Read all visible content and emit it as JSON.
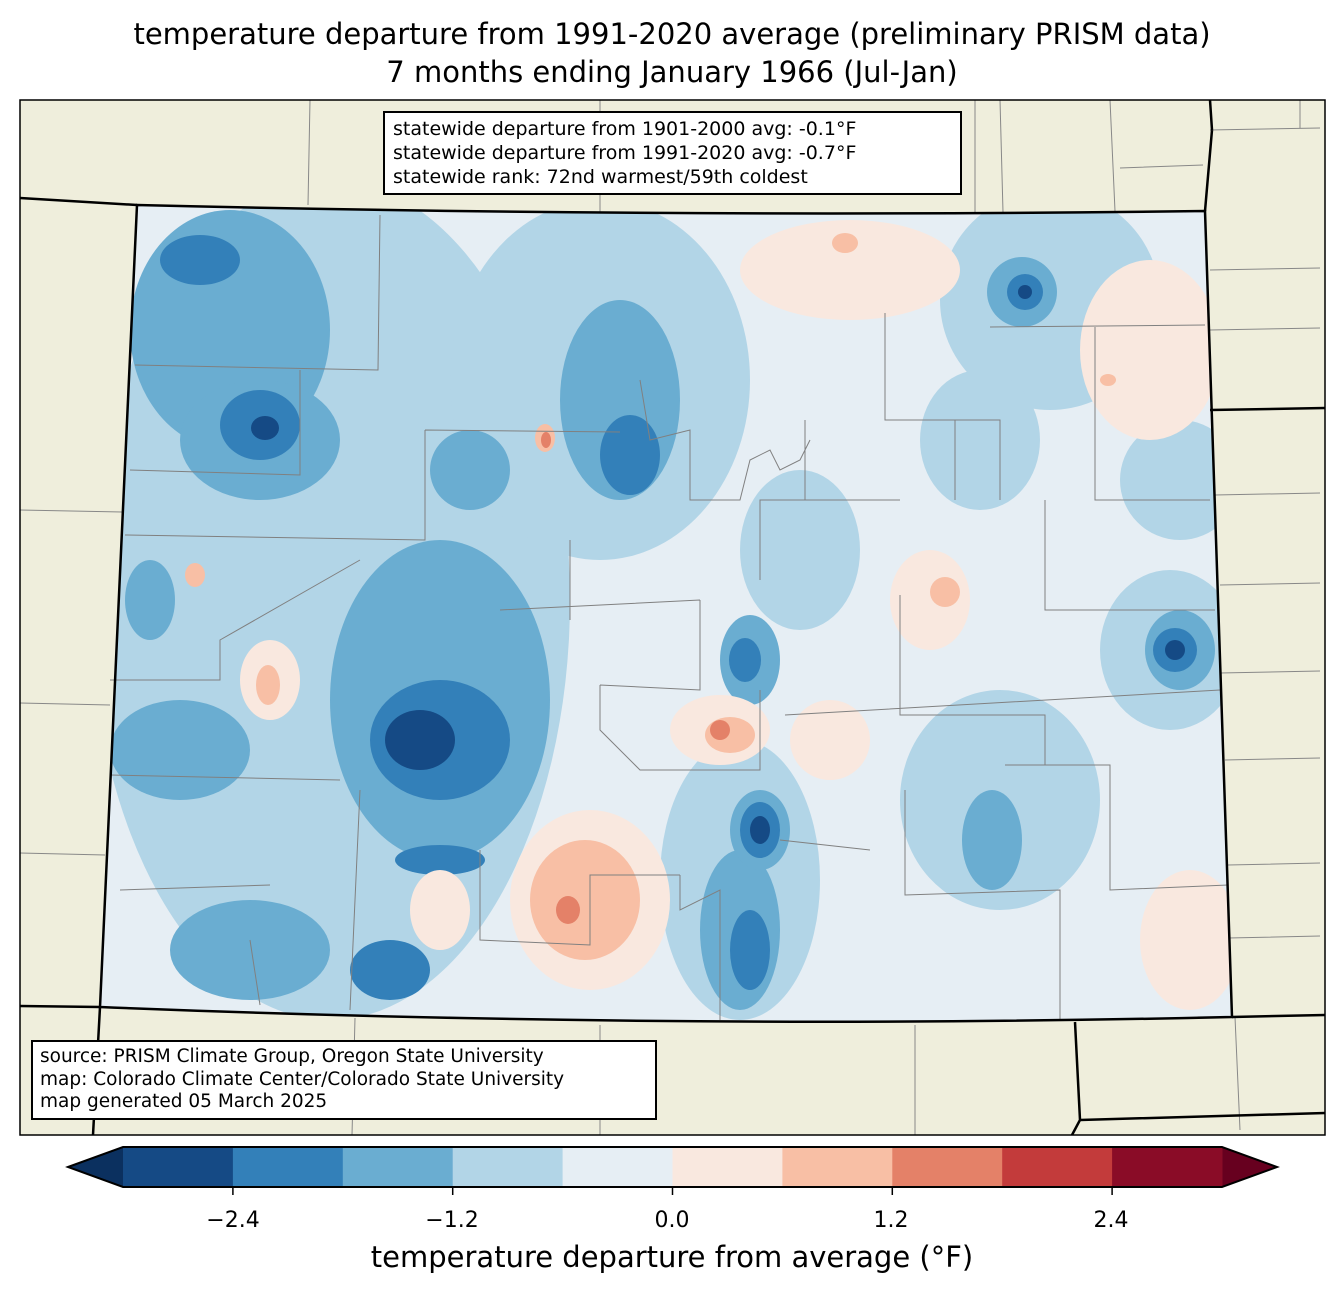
{
  "title": {
    "line1": "temperature departure from 1991-2020 average (preliminary PRISM data)",
    "line2": "7 months ending January 1966 (Jul-Jan)"
  },
  "stats": [
    "statewide departure from 1901-2000 avg: -0.1°F",
    "statewide departure from 1991-2020 avg: -0.7°F",
    "statewide rank: 72nd warmest/59th coldest"
  ],
  "source": [
    "source: PRISM Climate Group, Oregon State University",
    "map: Colorado Climate Center/Colorado State University",
    "map generated 05 March 2025"
  ],
  "colorbar": {
    "label": "temperature departure from average (°F)",
    "ticks": [
      "−2.4",
      "−1.2",
      "0.0",
      "1.2",
      "2.4"
    ],
    "levels": [
      -3.0,
      -2.4,
      -1.8,
      -1.2,
      -0.6,
      0.0,
      0.6,
      1.2,
      1.8,
      2.4,
      3.0
    ],
    "under_color": "#0b305f",
    "over_color": "#67001f",
    "colors": [
      "#154a85",
      "#3380b9",
      "#6aadd1",
      "#b2d5e7",
      "#e6eef4",
      "#f9e8df",
      "#f8bfa5",
      "#e48168",
      "#c33b3b",
      "#8a0c27"
    ]
  }
}
